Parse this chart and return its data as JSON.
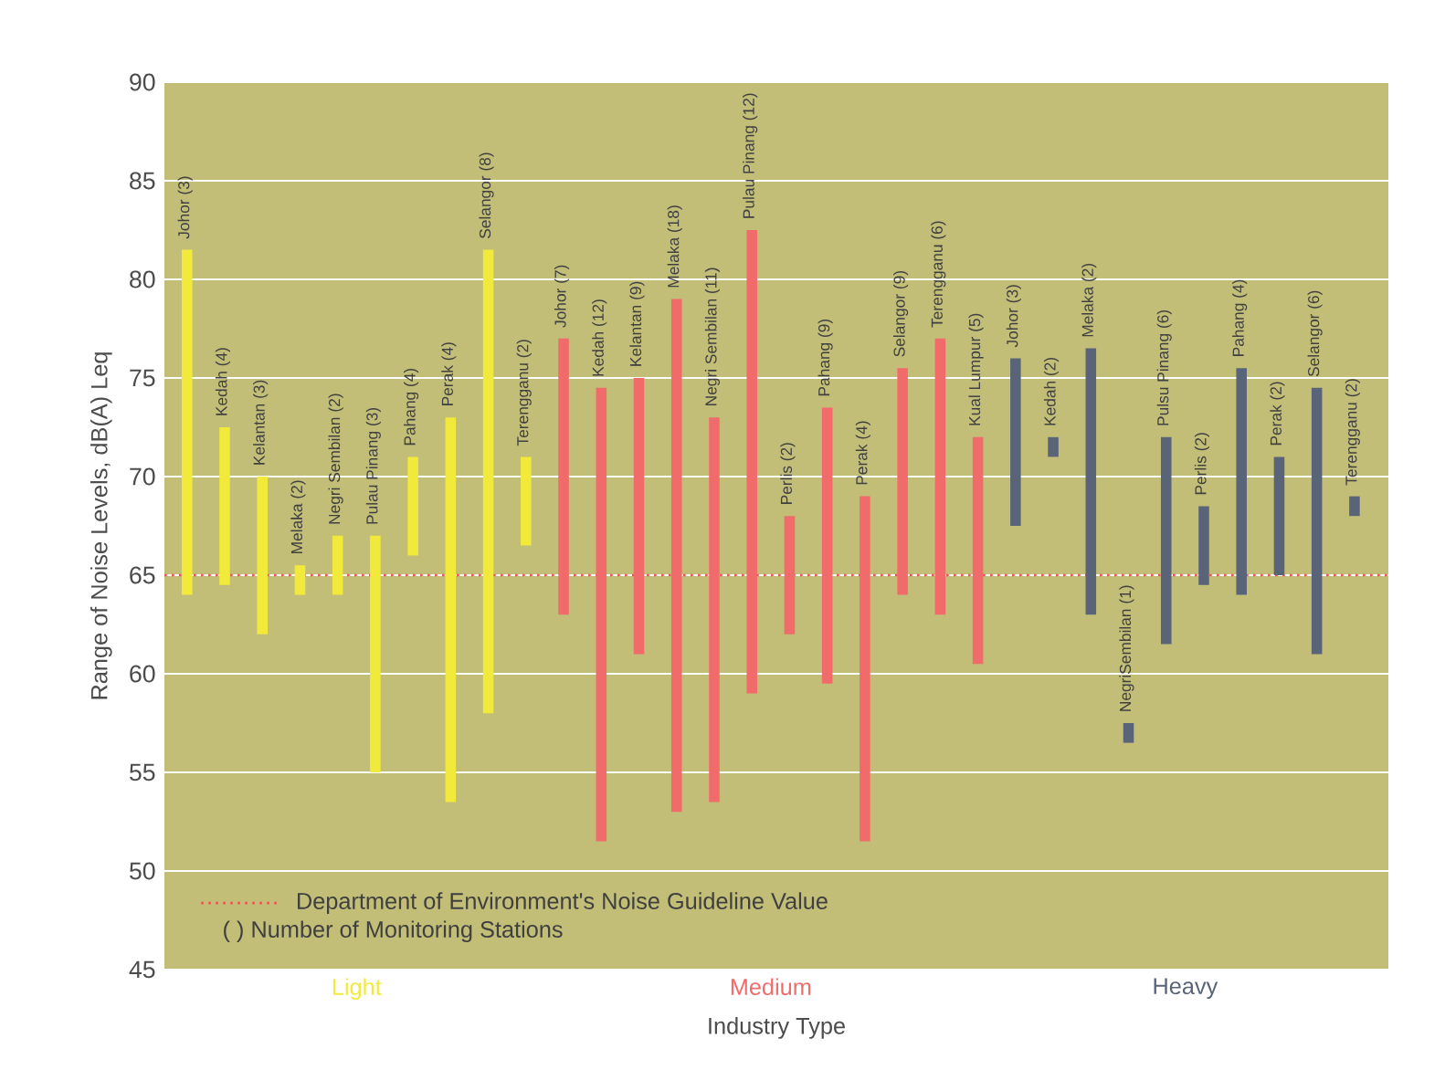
{
  "chart_data": {
    "type": "bar",
    "xlabel": "Industry Type",
    "ylabel": "Range of Noise Levels, dB(A) Leq",
    "categories": [
      "Johor (3)",
      "Kedah (4)",
      "Kelantan (3)",
      "Melaka (2)",
      "Negri Sembilan (2)",
      "Pulau Pinang (3)",
      "Pahang (4)",
      "Perak (4)",
      "Selangor (8)",
      "Terengganu (2)",
      "Johor (7)",
      "Kedah (12)",
      "Kelantan (9)",
      "Melaka (18)",
      "Negri Sembilan (11)",
      "Pulau Pinang (12)",
      "Perlis (2)",
      "Pahang (9)",
      "Perak (4)",
      "Selangor (9)",
      "Terengganu (6)",
      "Kual Lumpur (5)",
      "Johor (3)",
      "Kedah (2)",
      "Melaka (2)",
      "NegriSembilan (1)",
      "Pulsu Pinang (6)",
      "Perlis (2)",
      "Pahang (4)",
      "Perak (2)",
      "Selangor (6)",
      "Terengganu (2)"
    ],
    "series": [
      {
        "name": "Light",
        "color": "#f2ea3a",
        "base": [
          64,
          64.5,
          62,
          64,
          64,
          55,
          66,
          53.5,
          58,
          66.5,
          null,
          null,
          null,
          null,
          null,
          null,
          null,
          null,
          null,
          null,
          null,
          null,
          null,
          null,
          null,
          null,
          null,
          null,
          null,
          null,
          null,
          null
        ],
        "values": [
          17.5,
          8,
          8,
          1.5,
          3,
          12,
          5,
          19.5,
          23.5,
          4.5,
          null,
          null,
          null,
          null,
          null,
          null,
          null,
          null,
          null,
          null,
          null,
          null,
          null,
          null,
          null,
          null,
          null,
          null,
          null,
          null,
          null,
          null
        ]
      },
      {
        "name": "Medium",
        "color": "#f26b6b",
        "base": [
          null,
          null,
          null,
          null,
          null,
          null,
          null,
          null,
          null,
          null,
          63,
          51.5,
          61,
          53,
          53.5,
          59,
          62,
          59.5,
          51.5,
          64,
          63,
          60.5,
          null,
          null,
          null,
          null,
          null,
          null,
          null,
          null,
          null,
          null
        ],
        "values": [
          null,
          null,
          null,
          null,
          null,
          null,
          null,
          null,
          null,
          null,
          14,
          23,
          14,
          26,
          19.5,
          23.5,
          6,
          14,
          17.5,
          11.5,
          14,
          11.5,
          null,
          null,
          null,
          null,
          null,
          null,
          null,
          null,
          null,
          null
        ]
      },
      {
        "name": "Heavy",
        "color": "#5a6478",
        "base": [
          null,
          null,
          null,
          null,
          null,
          null,
          null,
          null,
          null,
          null,
          null,
          null,
          null,
          null,
          null,
          null,
          null,
          null,
          null,
          null,
          null,
          null,
          67.5,
          71,
          63,
          56.5,
          61.5,
          64.5,
          64,
          65,
          61,
          68
        ],
        "values": [
          null,
          null,
          null,
          null,
          null,
          null,
          null,
          null,
          null,
          null,
          null,
          null,
          null,
          null,
          null,
          null,
          null,
          null,
          null,
          null,
          null,
          null,
          8.5,
          1,
          13.5,
          1,
          10.5,
          4,
          11.5,
          6,
          13.5,
          1
        ]
      }
    ],
    "ylim": [
      45,
      90
    ],
    "yticks": [
      45,
      50,
      55,
      60,
      65,
      70,
      75,
      80,
      85,
      90
    ],
    "grid": "y",
    "ref_lines": [
      {
        "axis": "y",
        "value": 65,
        "label": "Department of Environment's Noise Guideline Value",
        "color": "#e8554f",
        "line_style": "dotted"
      }
    ],
    "annotations": [
      "( ) Number of Monitoring Stations"
    ],
    "legend": "bottom left"
  }
}
